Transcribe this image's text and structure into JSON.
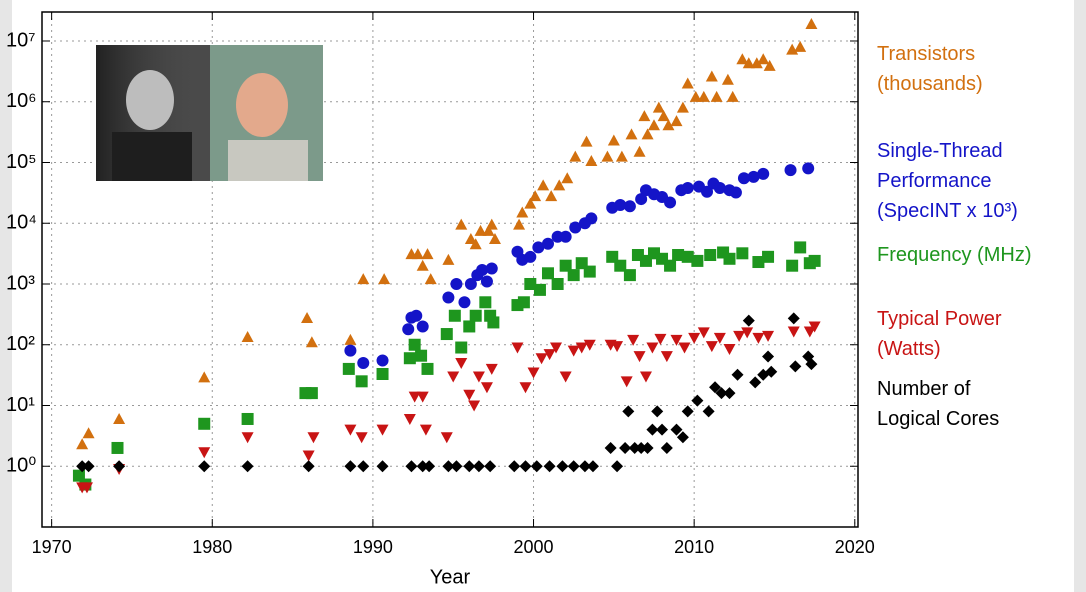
{
  "chart_data": {
    "type": "scatter",
    "xlabel": "Year",
    "log_y": true,
    "grid": true,
    "xlim": [
      1969.4,
      2020.2
    ],
    "ylim": [
      0.1,
      30000000
    ],
    "xticks": [
      1970,
      1980,
      1990,
      2000,
      2010,
      2020
    ],
    "yticks": [
      {
        "value": 1,
        "label": "10⁰"
      },
      {
        "value": 10,
        "label": "10¹"
      },
      {
        "value": 100,
        "label": "10²"
      },
      {
        "value": 1000,
        "label": "10³"
      },
      {
        "value": 10000,
        "label": "10⁴"
      },
      {
        "value": 100000,
        "label": "10⁵"
      },
      {
        "value": 1000000,
        "label": "10⁶"
      },
      {
        "value": 10000000,
        "label": "10⁷"
      }
    ],
    "series": [
      {
        "name": "Transistors\n(thousands)",
        "color": "#d2700f",
        "marker": "triangle-up",
        "x": [
          1971.9,
          1972.3,
          1974.2,
          1979.5,
          1982.2,
          1985.9,
          1986.2,
          1988.6,
          1989.4,
          1990.7,
          1992.4,
          1992.8,
          1993.1,
          1993.4,
          1993.6,
          1994.7,
          1995.5,
          1996.1,
          1996.4,
          1996.7,
          1997.2,
          1997.4,
          1997.6,
          1999.1,
          1999.3,
          1999.8,
          2000.1,
          2000.6,
          2001.1,
          2001.6,
          2002.1,
          2002.6,
          2003.3,
          2003.6,
          2004.6,
          2005.0,
          2005.5,
          2006.1,
          2006.6,
          2006.9,
          2007.1,
          2007.5,
          2007.8,
          2008.1,
          2008.4,
          2008.9,
          2009.3,
          2009.6,
          2010.1,
          2010.6,
          2011.1,
          2011.4,
          2012.1,
          2012.4,
          2013.0,
          2013.4,
          2013.9,
          2014.3,
          2014.7,
          2016.1,
          2016.6,
          2017.3
        ],
        "values": [
          2.3,
          3.5,
          6,
          29,
          134,
          275,
          110,
          120,
          1200,
          1200,
          3100,
          3100,
          2000,
          3100,
          1200,
          2500,
          9500,
          5500,
          4500,
          7500,
          7500,
          9500,
          5500,
          9500,
          15000,
          21000,
          28000,
          42000,
          28000,
          42000,
          55000,
          125000,
          220000,
          106000,
          125000,
          230000,
          125000,
          290000,
          150000,
          580000,
          290000,
          410000,
          800000,
          580000,
          410000,
          480000,
          800000,
          2000000,
          1200000,
          1200000,
          2600000,
          1200000,
          2300000,
          1200000,
          5000000,
          4300000,
          4300000,
          5000000,
          3900000,
          7200000,
          8000000,
          19000000
        ]
      },
      {
        "name": "Single-Thread\nPerformance\n(SpecINT x 10³)",
        "color": "#1414c8",
        "marker": "circle",
        "x": [
          1988.6,
          1989.4,
          1990.6,
          1992.2,
          1992.4,
          1992.7,
          1993.1,
          1994.7,
          1995.2,
          1995.7,
          1996.1,
          1996.5,
          1996.8,
          1997.1,
          1997.4,
          1999.0,
          1999.3,
          1999.8,
          2000.3,
          2000.9,
          2001.5,
          2002.0,
          2002.6,
          2003.2,
          2003.6,
          2004.9,
          2005.4,
          2006.0,
          2006.7,
          2007.0,
          2007.5,
          2008.0,
          2008.5,
          2009.2,
          2009.6,
          2010.3,
          2010.8,
          2011.2,
          2011.6,
          2012.2,
          2012.6,
          2013.1,
          2013.7,
          2014.3,
          2016.0,
          2017.1
        ],
        "values": [
          80,
          50,
          55,
          180,
          280,
          300,
          200,
          600,
          1000,
          500,
          1000,
          1400,
          1700,
          1100,
          1800,
          3400,
          2500,
          2800,
          4000,
          4600,
          6000,
          6000,
          8500,
          10000,
          12000,
          18000,
          20000,
          19000,
          25000,
          35000,
          30000,
          27000,
          22000,
          35000,
          38000,
          40000,
          33000,
          45000,
          38000,
          35000,
          32000,
          55000,
          58000,
          65000,
          75000,
          80000
        ]
      },
      {
        "name": "Frequency (MHz)",
        "color": "#1e961e",
        "marker": "square",
        "x": [
          1971.7,
          1972.1,
          1974.1,
          1979.5,
          1982.2,
          1985.8,
          1986.2,
          1988.5,
          1989.3,
          1990.6,
          1992.3,
          1992.6,
          1993.0,
          1993.4,
          1994.6,
          1995.1,
          1995.5,
          1996.0,
          1996.4,
          1997.0,
          1997.3,
          1997.5,
          1999.0,
          1999.4,
          1999.8,
          2000.4,
          2000.9,
          2001.5,
          2002.0,
          2002.5,
          2003.0,
          2003.5,
          2004.9,
          2005.4,
          2006.0,
          2006.5,
          2007.0,
          2007.5,
          2008.0,
          2008.5,
          2009.0,
          2009.6,
          2010.2,
          2011.0,
          2011.8,
          2012.2,
          2013.0,
          2014.0,
          2014.6,
          2016.1,
          2016.6,
          2017.2,
          2017.5
        ],
        "values": [
          0.7,
          0.5,
          2,
          5,
          6,
          16,
          16,
          40,
          25,
          33,
          60,
          100,
          66,
          40,
          150,
          300,
          90,
          200,
          300,
          500,
          300,
          233,
          450,
          500,
          1000,
          800,
          1500,
          1000,
          2000,
          1400,
          2200,
          1600,
          2800,
          2000,
          1400,
          3000,
          2400,
          3200,
          2600,
          2000,
          3000,
          2800,
          2400,
          3000,
          3300,
          2600,
          3200,
          2300,
          2800,
          2000,
          4000,
          2200,
          2400
        ]
      },
      {
        "name": "Typical Power\n(Watts)",
        "color": "#c81414",
        "marker": "triangle-down",
        "x": [
          1971.9,
          1972.2,
          1974.2,
          1979.5,
          1982.2,
          1986.0,
          1986.3,
          1988.6,
          1989.3,
          1990.6,
          1992.3,
          1992.6,
          1993.1,
          1993.3,
          1994.6,
          1995.0,
          1995.5,
          1996.0,
          1996.3,
          1996.6,
          1997.1,
          1997.4,
          1999.0,
          1999.5,
          2000.0,
          2000.5,
          2001.0,
          2001.4,
          2002.0,
          2002.5,
          2003.0,
          2003.5,
          2004.8,
          2005.2,
          2005.8,
          2006.2,
          2006.6,
          2007.0,
          2007.4,
          2007.9,
          2008.3,
          2008.9,
          2009.4,
          2010.0,
          2010.6,
          2011.1,
          2011.6,
          2012.2,
          2012.8,
          2013.3,
          2014.0,
          2014.6,
          2016.2,
          2017.2,
          2017.5
        ],
        "values": [
          0.45,
          0.45,
          0.9,
          1.7,
          3,
          1.5,
          3,
          4,
          3,
          4,
          6,
          14,
          14,
          4,
          3,
          30,
          50,
          15,
          10,
          30,
          20,
          40,
          90,
          20,
          35,
          60,
          70,
          90,
          30,
          80,
          90,
          100,
          100,
          95,
          25,
          120,
          65,
          30,
          90,
          125,
          65,
          120,
          90,
          130,
          160,
          95,
          130,
          85,
          140,
          160,
          130,
          140,
          165,
          165,
          200
        ]
      },
      {
        "name": "Number of\nLogical Cores",
        "color": "#000000",
        "marker": "diamond",
        "x": [
          1971.9,
          1972.3,
          1974.2,
          1979.5,
          1982.2,
          1986.0,
          1988.6,
          1989.4,
          1990.6,
          1992.4,
          1993.1,
          1993.5,
          1994.7,
          1995.2,
          1996.0,
          1996.6,
          1997.3,
          1998.8,
          1999.5,
          2000.2,
          2001.0,
          2001.8,
          2002.5,
          2003.2,
          2003.7,
          2004.8,
          2005.2,
          2005.7,
          2005.9,
          2006.3,
          2006.7,
          2007.1,
          2007.4,
          2007.7,
          2008.0,
          2008.3,
          2008.9,
          2009.3,
          2009.6,
          2010.2,
          2010.9,
          2011.3,
          2011.7,
          2012.2,
          2012.7,
          2013.4,
          2013.8,
          2014.3,
          2014.6,
          2014.8,
          2016.2,
          2016.3,
          2017.1,
          2017.3
        ],
        "values": [
          1,
          1,
          1,
          1,
          1,
          1,
          1,
          1,
          1,
          1,
          1,
          1,
          1,
          1,
          1,
          1,
          1,
          1,
          1,
          1,
          1,
          1,
          1,
          1,
          1,
          2,
          1,
          2,
          8,
          2,
          2,
          2,
          4,
          8,
          4,
          2,
          4,
          3,
          8,
          12,
          8,
          20,
          16,
          16,
          32,
          250,
          24,
          32,
          64,
          36,
          272,
          44,
          64,
          48
        ]
      }
    ]
  }
}
